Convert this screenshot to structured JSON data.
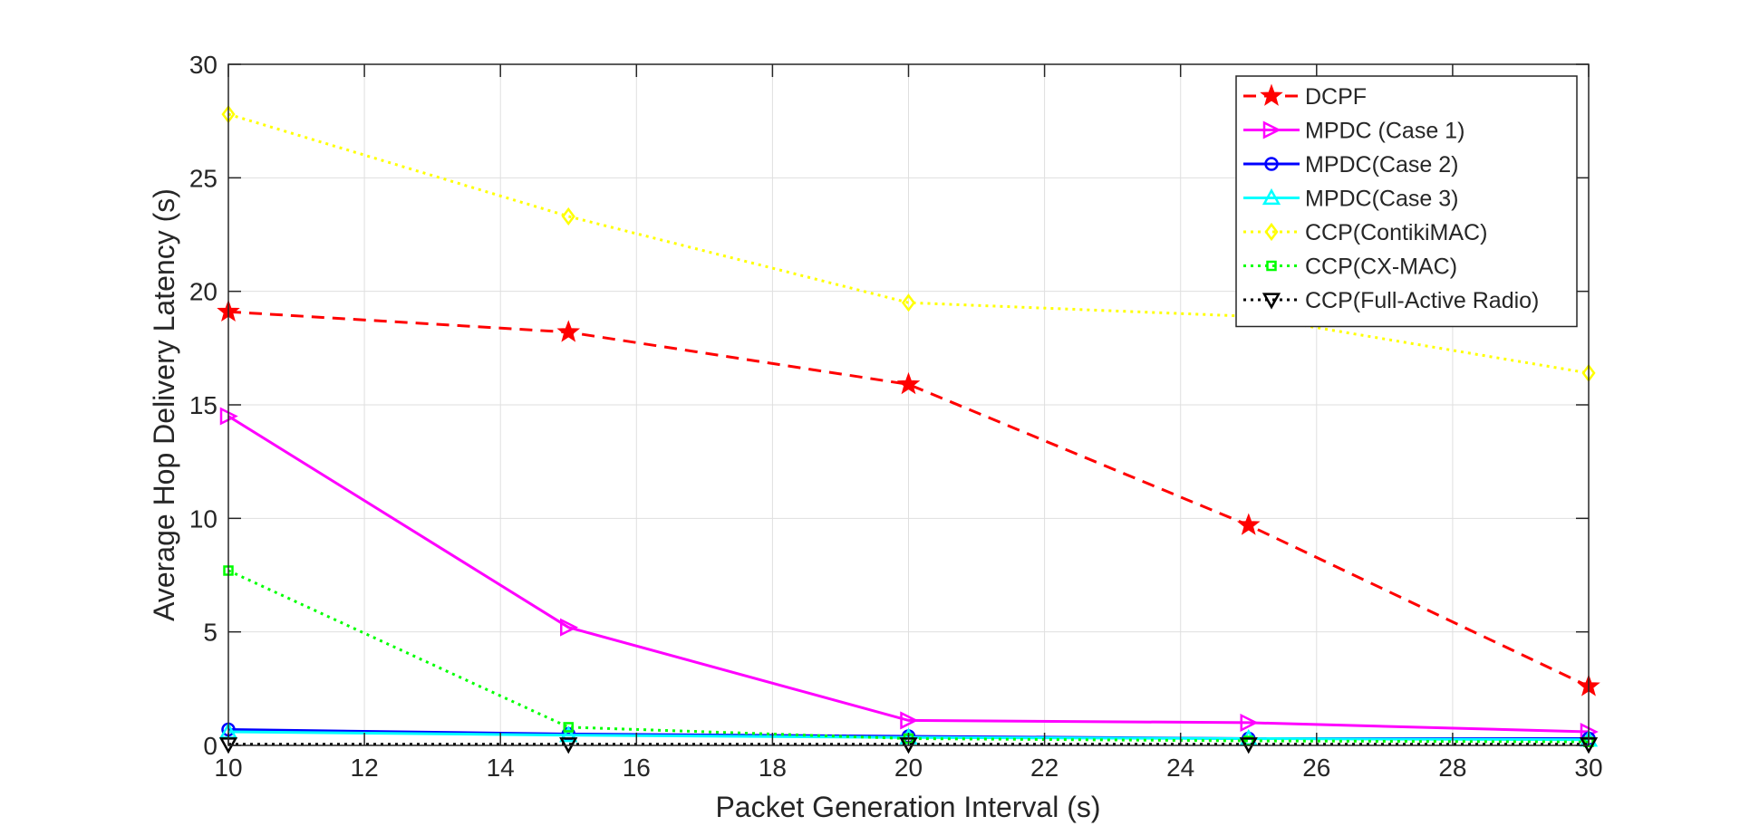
{
  "chart_data": {
    "type": "line",
    "title": "",
    "xlabel": "Packet Generation Interval (s)",
    "ylabel": "Average Hop Delivery Latency (s)",
    "xlim": [
      10,
      30
    ],
    "ylim": [
      0,
      30
    ],
    "xticks": [
      10,
      12,
      14,
      16,
      18,
      20,
      22,
      24,
      26,
      28,
      30
    ],
    "yticks": [
      0,
      5,
      10,
      15,
      20,
      25,
      30
    ],
    "grid": true,
    "legend_position": "top-right",
    "x": [
      10,
      15,
      20,
      25,
      30
    ],
    "series": [
      {
        "name": "DCPF",
        "values": [
          19.1,
          18.2,
          15.9,
          9.7,
          2.6
        ],
        "color": "#ff0000",
        "dash": "14,9",
        "marker": "star",
        "width": 3
      },
      {
        "name": "MPDC (Case 1)",
        "values": [
          14.5,
          5.2,
          1.1,
          1.0,
          0.6
        ],
        "color": "#ff00ff",
        "dash": "",
        "marker": "triangle-right",
        "width": 3
      },
      {
        "name": "MPDC(Case 2)",
        "values": [
          0.7,
          0.5,
          0.4,
          0.3,
          0.3
        ],
        "color": "#0000ff",
        "dash": "",
        "marker": "circle",
        "width": 3
      },
      {
        "name": "MPDC(Case 3)",
        "values": [
          0.6,
          0.45,
          0.35,
          0.3,
          0.25
        ],
        "color": "#00ffff",
        "dash": "",
        "marker": "triangle-up",
        "width": 3
      },
      {
        "name": "CCP(ContikiMAC)",
        "values": [
          27.8,
          23.3,
          19.5,
          18.9,
          16.4
        ],
        "color": "#ffff00",
        "dash": "3,5",
        "marker": "diamond",
        "width": 3
      },
      {
        "name": "CCP(CX-MAC)",
        "values": [
          7.7,
          0.8,
          0.3,
          0.2,
          0.15
        ],
        "color": "#00ff00",
        "dash": "3,5",
        "marker": "square",
        "width": 3
      },
      {
        "name": "CCP(Full-Active Radio)",
        "values": [
          0.05,
          0.05,
          0.05,
          0.05,
          0.05
        ],
        "color": "#000000",
        "dash": "3,5",
        "marker": "triangle-down",
        "width": 3
      }
    ]
  }
}
